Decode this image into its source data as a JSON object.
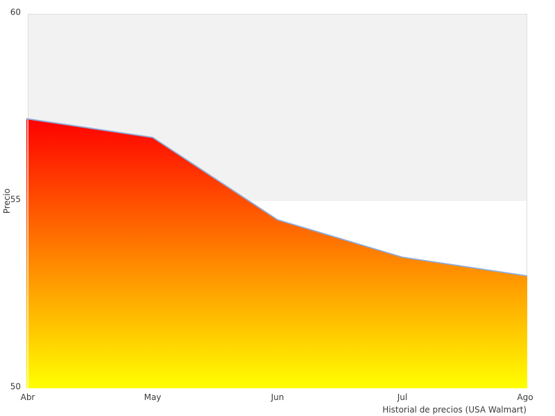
{
  "chart_data": {
    "type": "area",
    "title": "",
    "xlabel": "Historial de precios (USA Walmart)",
    "ylabel": "Precio",
    "categories": [
      "Abr",
      "May",
      "Jun",
      "Jul",
      "Ago"
    ],
    "series": [
      {
        "name": "Precio",
        "values": [
          57.2,
          56.7,
          54.5,
          53.5,
          53.0
        ]
      }
    ],
    "ylim": [
      50,
      60
    ],
    "yticks": [
      50,
      55,
      60
    ],
    "legend": "none",
    "grid": "band",
    "band": {
      "from": 55,
      "to": 60,
      "color": "#f2f2f2"
    },
    "colors": {
      "gradient_top": "#ff0000",
      "gradient_bottom": "#ffff00",
      "line": "#8fabd8",
      "plot_border": "#dddddd",
      "text": "#3a3a3a",
      "background": "#ffffff"
    }
  }
}
